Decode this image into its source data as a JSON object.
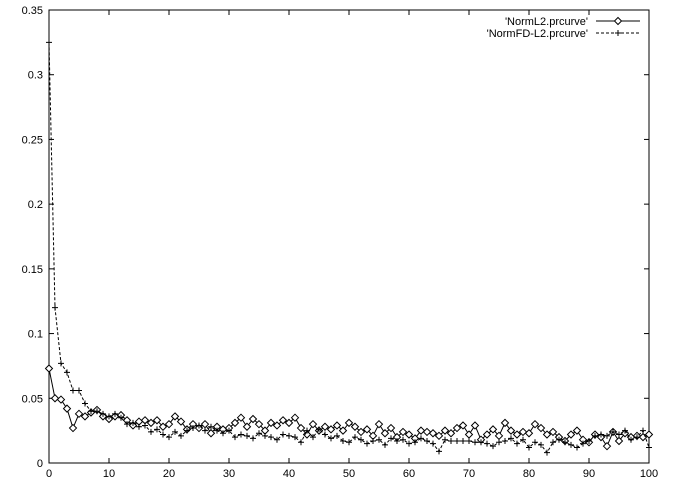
{
  "chart_data": {
    "type": "line",
    "title": "",
    "xlabel": "",
    "ylabel": "",
    "xlim": [
      0,
      100
    ],
    "ylim": [
      0,
      0.35
    ],
    "x_ticks": [
      0,
      10,
      20,
      30,
      40,
      50,
      60,
      70,
      80,
      90,
      100
    ],
    "y_ticks": [
      0,
      0.05,
      0.1,
      0.15,
      0.2,
      0.25,
      0.3,
      0.35
    ],
    "x_tick_labels": [
      "0",
      "10",
      "20",
      "30",
      "40",
      "50",
      "60",
      "70",
      "80",
      "90",
      "100"
    ],
    "y_tick_labels": [
      "0",
      "0.05",
      "0.1",
      "0.15",
      "0.2",
      "0.25",
      "0.3",
      "0.35"
    ],
    "grid": false,
    "legend_position": "top-right",
    "series": [
      {
        "name": "'NormL2.prcurve'",
        "line_style": "solid",
        "marker": "diamond",
        "x": [
          0,
          1,
          2,
          3,
          4,
          5,
          6,
          7,
          8,
          9,
          10,
          11,
          12,
          13,
          14,
          15,
          16,
          17,
          18,
          19,
          20,
          21,
          22,
          23,
          24,
          25,
          26,
          27,
          28,
          29,
          30,
          31,
          32,
          33,
          34,
          35,
          36,
          37,
          38,
          39,
          40,
          41,
          42,
          43,
          44,
          45,
          46,
          47,
          48,
          49,
          50,
          51,
          52,
          53,
          54,
          55,
          56,
          57,
          58,
          59,
          60,
          61,
          62,
          63,
          64,
          65,
          66,
          67,
          68,
          69,
          70,
          71,
          72,
          73,
          74,
          75,
          76,
          77,
          78,
          79,
          80,
          81,
          82,
          83,
          84,
          85,
          86,
          87,
          88,
          89,
          90,
          91,
          92,
          93,
          94,
          95,
          96,
          97,
          98,
          99,
          100
        ],
        "y": [
          0.073,
          0.05,
          0.049,
          0.042,
          0.027,
          0.038,
          0.036,
          0.039,
          0.041,
          0.036,
          0.034,
          0.036,
          0.037,
          0.033,
          0.029,
          0.032,
          0.033,
          0.031,
          0.033,
          0.028,
          0.03,
          0.036,
          0.032,
          0.026,
          0.03,
          0.027,
          0.03,
          0.023,
          0.028,
          0.026,
          0.027,
          0.031,
          0.035,
          0.028,
          0.034,
          0.03,
          0.025,
          0.031,
          0.029,
          0.033,
          0.031,
          0.035,
          0.027,
          0.022,
          0.03,
          0.025,
          0.028,
          0.026,
          0.029,
          0.025,
          0.031,
          0.028,
          0.024,
          0.026,
          0.021,
          0.03,
          0.023,
          0.027,
          0.02,
          0.024,
          0.022,
          0.019,
          0.025,
          0.024,
          0.023,
          0.021,
          0.025,
          0.023,
          0.027,
          0.029,
          0.022,
          0.029,
          0.018,
          0.022,
          0.026,
          0.021,
          0.031,
          0.025,
          0.022,
          0.024,
          0.023,
          0.03,
          0.027,
          0.022,
          0.024,
          0.02,
          0.017,
          0.022,
          0.025,
          0.018,
          0.016,
          0.022,
          0.02,
          0.013,
          0.024,
          0.017,
          0.023,
          0.02,
          0.021,
          0.02,
          0.022
        ]
      },
      {
        "name": "'NormFD-L2.prcurve'",
        "line_style": "dashed",
        "marker": "plus",
        "x": [
          0,
          1,
          2,
          3,
          4,
          5,
          6,
          7,
          8,
          9,
          10,
          11,
          12,
          13,
          14,
          15,
          16,
          17,
          18,
          19,
          20,
          21,
          22,
          23,
          24,
          25,
          26,
          27,
          28,
          29,
          30,
          31,
          32,
          33,
          34,
          35,
          36,
          37,
          38,
          39,
          40,
          41,
          42,
          43,
          44,
          45,
          46,
          47,
          48,
          49,
          50,
          51,
          52,
          53,
          54,
          55,
          56,
          57,
          58,
          59,
          60,
          61,
          62,
          63,
          64,
          65,
          66,
          67,
          68,
          69,
          70,
          71,
          72,
          73,
          74,
          75,
          76,
          77,
          78,
          79,
          80,
          81,
          82,
          83,
          84,
          85,
          86,
          87,
          88,
          89,
          90,
          91,
          92,
          93,
          94,
          95,
          96,
          97,
          98,
          99,
          100
        ],
        "y": [
          0.325,
          0.12,
          0.077,
          0.07,
          0.056,
          0.056,
          0.046,
          0.04,
          0.04,
          0.038,
          0.036,
          0.038,
          0.035,
          0.03,
          0.031,
          0.028,
          0.029,
          0.024,
          0.026,
          0.022,
          0.02,
          0.024,
          0.021,
          0.025,
          0.027,
          0.029,
          0.025,
          0.028,
          0.025,
          0.023,
          0.025,
          0.02,
          0.022,
          0.021,
          0.019,
          0.023,
          0.021,
          0.02,
          0.018,
          0.022,
          0.021,
          0.02,
          0.016,
          0.025,
          0.02,
          0.026,
          0.022,
          0.019,
          0.021,
          0.017,
          0.016,
          0.02,
          0.018,
          0.015,
          0.017,
          0.018,
          0.014,
          0.019,
          0.017,
          0.018,
          0.015,
          0.016,
          0.019,
          0.017,
          0.015,
          0.009,
          0.018,
          0.017,
          0.017,
          0.017,
          0.017,
          0.016,
          0.016,
          0.015,
          0.013,
          0.016,
          0.017,
          0.019,
          0.015,
          0.018,
          0.012,
          0.016,
          0.014,
          0.008,
          0.016,
          0.018,
          0.016,
          0.014,
          0.012,
          0.015,
          0.017,
          0.021,
          0.022,
          0.021,
          0.024,
          0.022,
          0.025,
          0.018,
          0.02,
          0.025,
          0.012
        ]
      }
    ]
  }
}
